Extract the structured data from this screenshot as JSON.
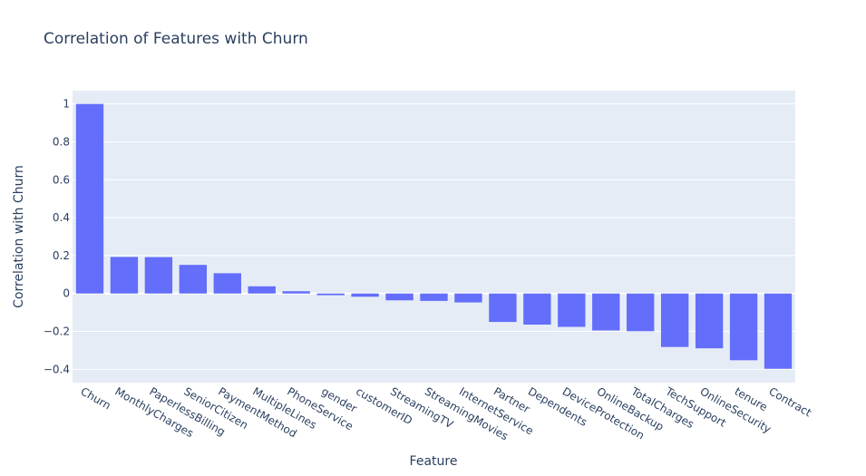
{
  "chart_data": {
    "type": "bar",
    "title": "Correlation of Features with Churn",
    "xlabel": "Feature",
    "ylabel": "Correlation with Churn",
    "categories": [
      "Churn",
      "MonthlyCharges",
      "PaperlessBilling",
      "SeniorCitizen",
      "PaymentMethod",
      "MultipleLines",
      "PhoneService",
      "gender",
      "customerID",
      "StreamingTV",
      "StreamingMovies",
      "InternetService",
      "Partner",
      "Dependents",
      "DeviceProtection",
      "OnlineBackup",
      "TotalCharges",
      "TechSupport",
      "OnlineSecurity",
      "tenure",
      "Contract"
    ],
    "values": [
      1.0,
      0.193,
      0.192,
      0.151,
      0.107,
      0.038,
      0.012,
      -0.009,
      -0.017,
      -0.036,
      -0.039,
      -0.047,
      -0.15,
      -0.164,
      -0.176,
      -0.195,
      -0.199,
      -0.282,
      -0.289,
      -0.352,
      -0.397
    ],
    "yticks": [
      1,
      0.8,
      0.6,
      0.4,
      0.2,
      0,
      -0.2,
      -0.4
    ],
    "ytick_labels": [
      "1",
      "0.8",
      "0.6",
      "0.4",
      "0.2",
      "0",
      "−0.2",
      "−0.4"
    ],
    "ylim": [
      -0.47,
      1.07
    ],
    "grid": true,
    "colors": {
      "bar": "#636efa",
      "plot_bg": "#e5ecf6",
      "grid": "#ffffff",
      "text": "#2a3f5f"
    }
  }
}
